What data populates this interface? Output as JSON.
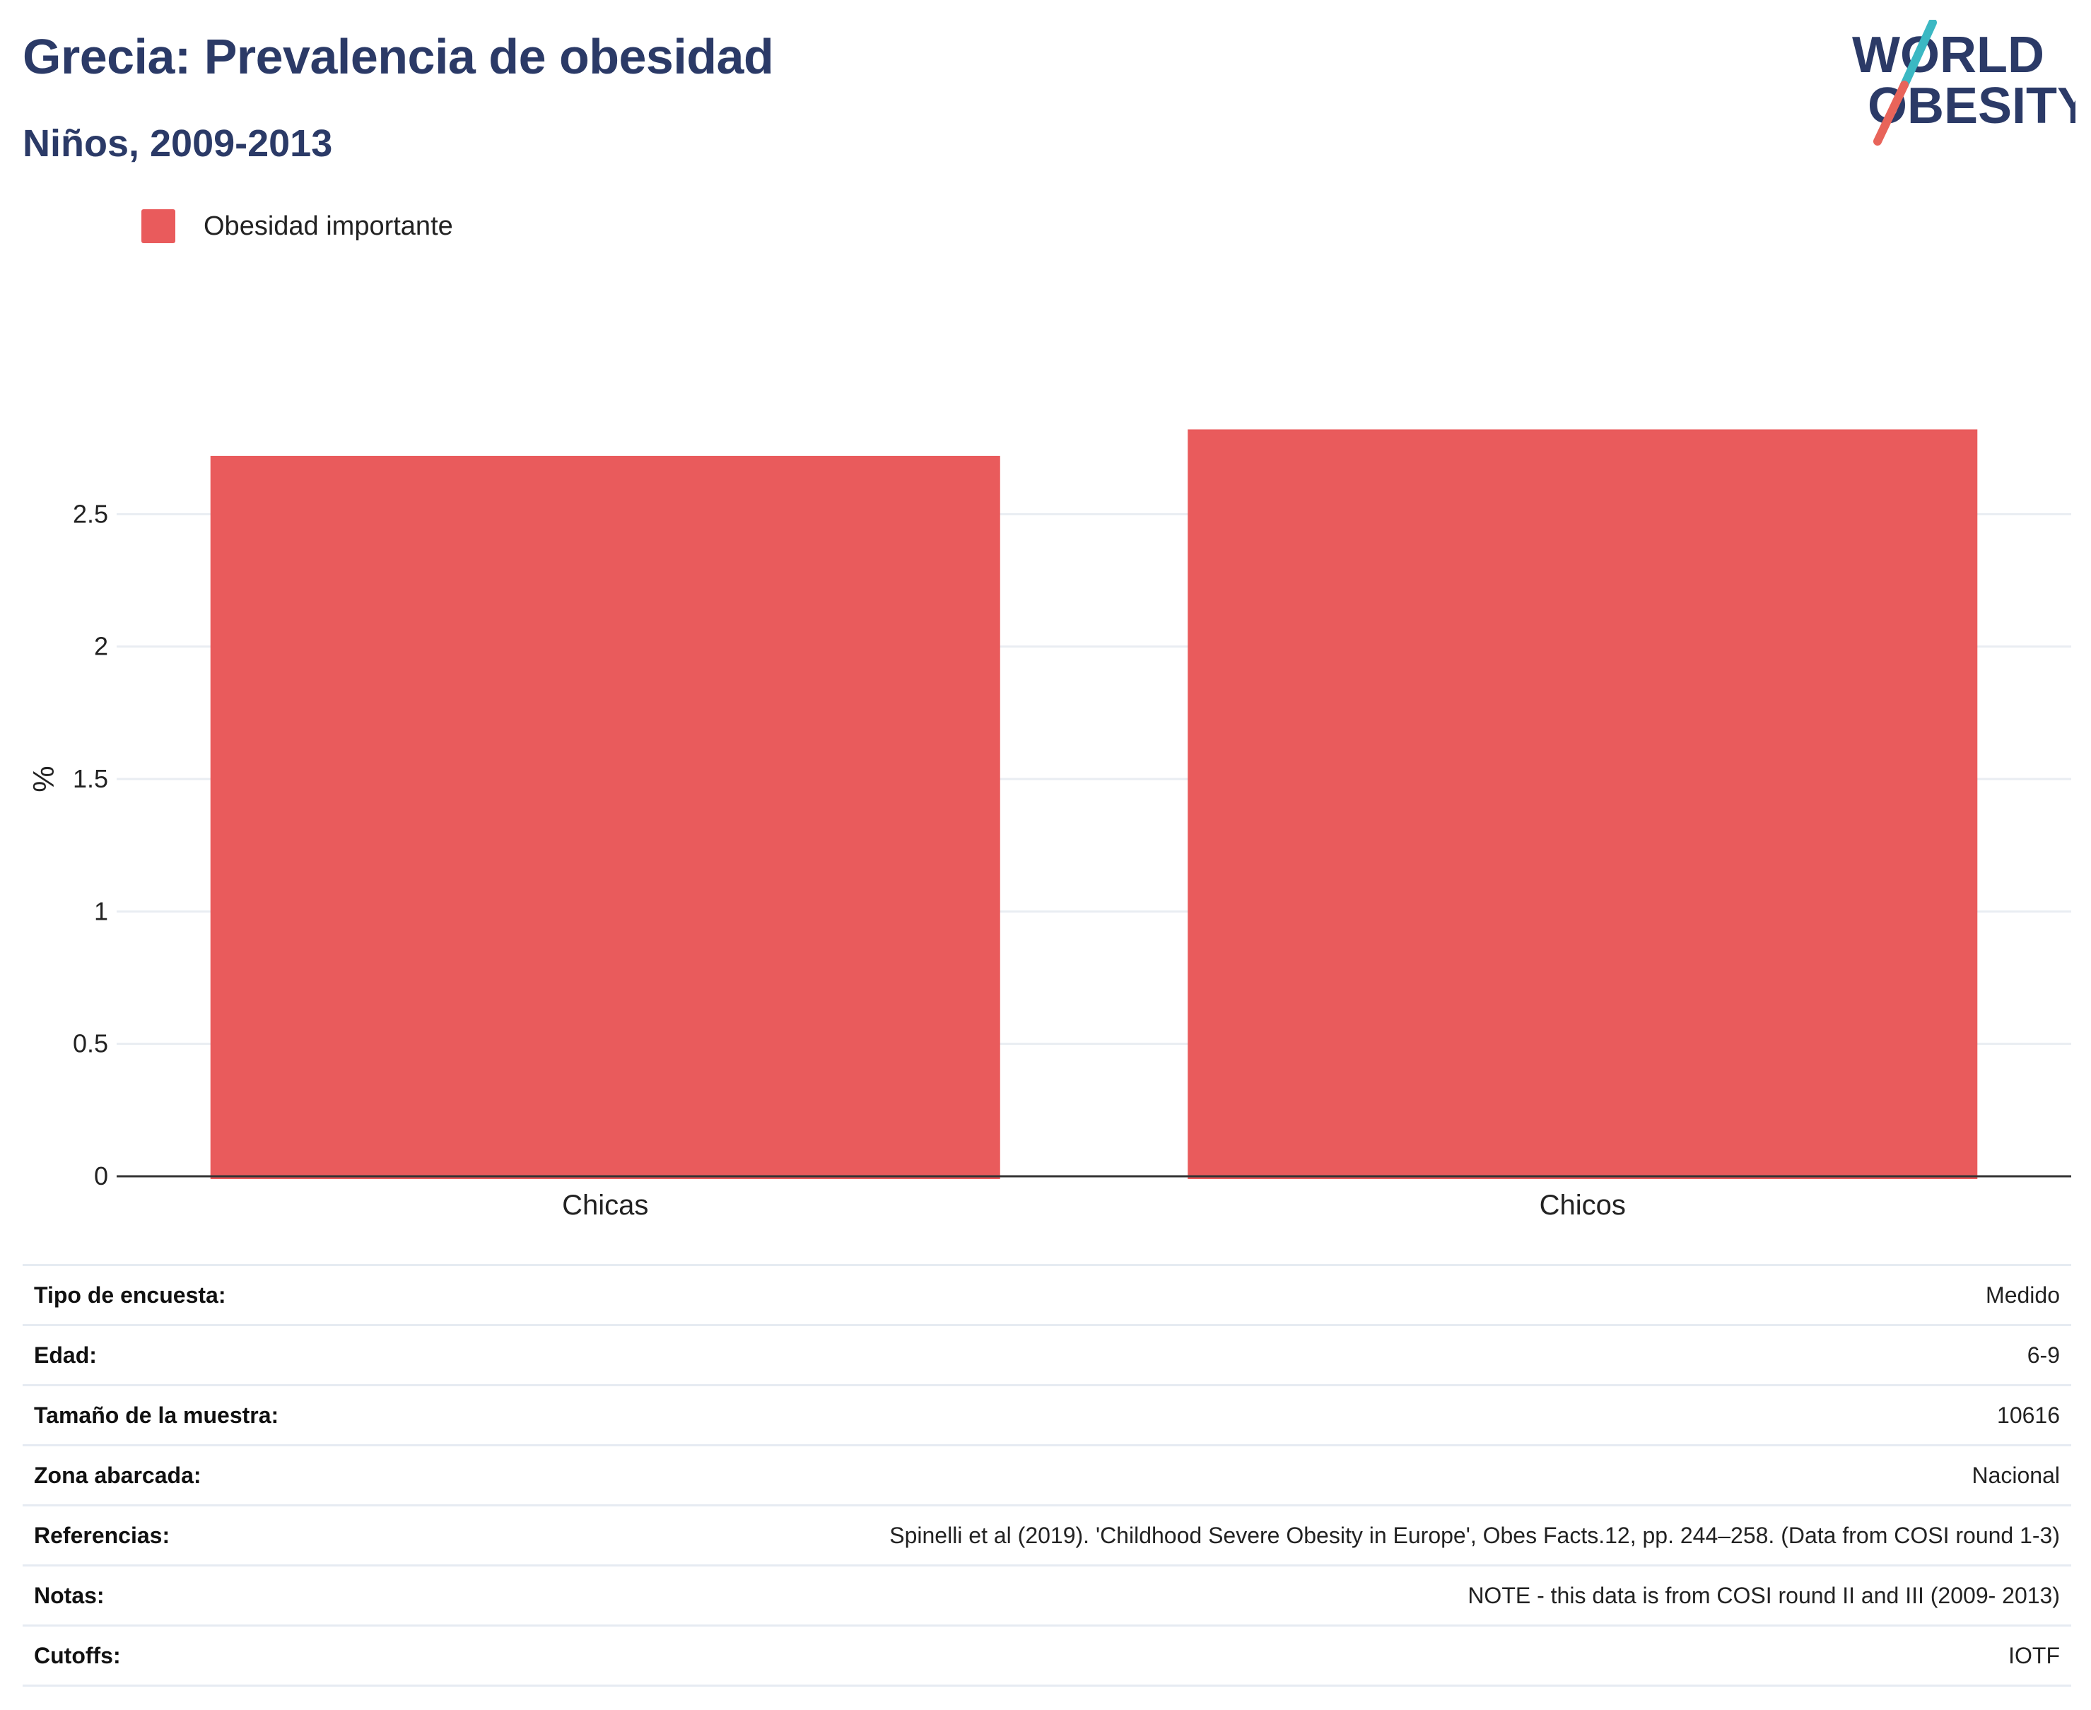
{
  "header": {
    "title": "Grecia: Prevalencia de obesidad",
    "subtitle": "Niños, 2009-2013"
  },
  "logo": {
    "line1": "WORLD",
    "line2": "OBESITY",
    "colors": {
      "text": "#2b3a67",
      "slash_top": "#3bb8c3",
      "slash_bottom": "#e8645a"
    }
  },
  "chart_data": {
    "type": "bar",
    "categories": [
      "Chicas",
      "Chicos"
    ],
    "series": [
      {
        "name": "Obesidad importante",
        "values": [
          2.72,
          2.82
        ],
        "color": "#e95b5c"
      }
    ],
    "ylabel": "%",
    "yticks": [
      0,
      0.5,
      1,
      1.5,
      2,
      2.5
    ],
    "ytick_labels": [
      "0",
      "0.5",
      "1",
      "1.5",
      "2",
      "2.5"
    ],
    "ylim": [
      0,
      3.0
    ],
    "grid": true,
    "legend_position": "top-left"
  },
  "details": [
    {
      "key": "Tipo de encuesta:",
      "value": "Medido"
    },
    {
      "key": "Edad:",
      "value": "6-9"
    },
    {
      "key": "Tamaño de la muestra:",
      "value": "10616"
    },
    {
      "key": "Zona abarcada:",
      "value": "Nacional"
    },
    {
      "key": "Referencias:",
      "value": "Spinelli et al (2019). 'Childhood Severe Obesity in Europe', Obes Facts.12, pp. 244–258. (Data from COSI round 1-3)"
    },
    {
      "key": "Notas:",
      "value": "NOTE - this data is from COSI round II and III (2009- 2013)"
    },
    {
      "key": "Cutoffs:",
      "value": "IOTF"
    }
  ]
}
